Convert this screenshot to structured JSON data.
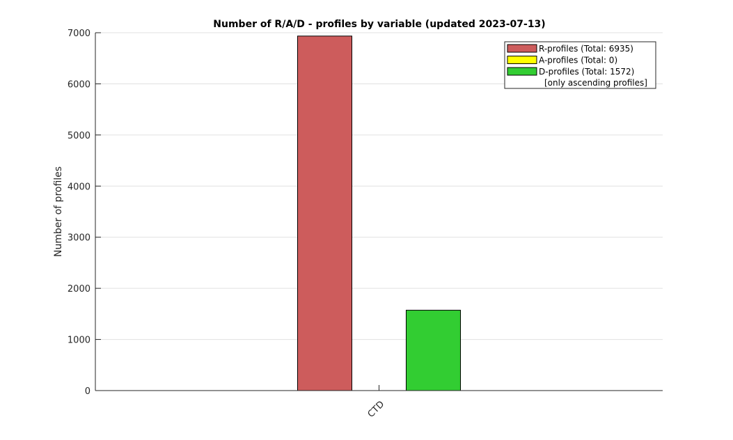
{
  "chart_data": {
    "type": "bar",
    "title": "Number of R/A/D - profiles by variable (updated 2023-07-13)",
    "xlabel": "",
    "ylabel": "Number of profiles",
    "categories": [
      "CTD"
    ],
    "ylim": [
      0,
      7000
    ],
    "yticks": [
      0,
      1000,
      2000,
      3000,
      4000,
      5000,
      6000,
      7000
    ],
    "grid": "y",
    "legend_position": "top-right",
    "series": [
      {
        "name": "R-profiles (Total: 6935)",
        "values": [
          6935
        ],
        "color": "#cd5c5c"
      },
      {
        "name": "A-profiles (Total: 0)",
        "values": [
          0
        ],
        "color": "#ffff00"
      },
      {
        "name": "D-profiles (Total: 1572)",
        "values": [
          1572
        ],
        "color": "#32cd32"
      }
    ],
    "legend_note": "[only ascending profiles]"
  }
}
